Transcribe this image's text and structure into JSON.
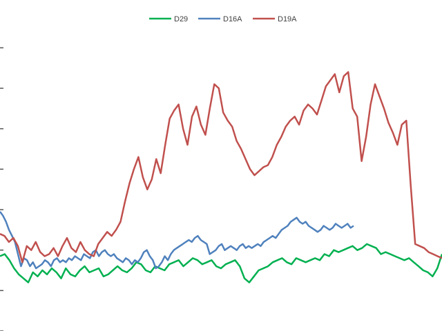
{
  "chart_data": {
    "type": "line",
    "title": "",
    "xlabel": "",
    "ylabel": "",
    "ylim": [
      0,
      7.5
    ],
    "legend": "top",
    "grid": false,
    "series": [
      {
        "name": "D29",
        "color": "#00b050",
        "values": [
          1.85,
          1.9,
          1.75,
          1.55,
          1.4,
          1.3,
          1.2,
          1.45,
          1.35,
          1.5,
          1.4,
          1.55,
          1.45,
          1.3,
          1.55,
          1.4,
          1.35,
          1.5,
          1.6,
          1.45,
          1.5,
          1.55,
          1.35,
          1.4,
          1.5,
          1.6,
          1.5,
          1.45,
          1.55,
          1.7,
          1.65,
          1.5,
          1.45,
          1.6,
          1.55,
          1.5,
          1.65,
          1.7,
          1.75,
          1.6,
          1.7,
          1.8,
          1.75,
          1.65,
          1.7,
          1.75,
          1.6,
          1.55,
          1.65,
          1.7,
          1.75,
          1.6,
          1.3,
          1.2,
          1.35,
          1.5,
          1.55,
          1.6,
          1.7,
          1.75,
          1.8,
          1.7,
          1.65,
          1.8,
          1.75,
          1.7,
          1.75,
          1.8,
          1.75,
          1.9,
          1.85,
          2.0,
          1.95,
          2.0,
          2.05,
          2.1,
          2.0,
          2.05,
          2.15,
          2.1,
          2.05,
          1.9,
          1.95,
          1.9,
          1.85,
          1.8,
          1.75,
          1.8,
          1.7,
          1.6,
          1.5,
          1.45,
          1.35,
          1.55,
          1.9
        ]
      },
      {
        "name": "D16A",
        "color": "#4f81bd",
        "values": [
          2.95,
          2.85,
          2.7,
          2.5,
          2.35,
          2.2,
          1.9,
          1.6,
          1.8,
          1.75,
          1.6,
          1.7,
          1.55,
          1.6,
          1.65,
          1.75,
          1.7,
          1.6,
          1.75,
          1.8,
          1.7,
          1.75,
          1.7,
          1.8,
          1.75,
          1.85,
          1.8,
          1.75,
          1.9,
          1.85,
          1.8,
          1.95,
          2.0,
          1.85,
          1.95,
          2.0,
          1.9,
          1.85,
          1.9,
          1.8,
          1.75,
          1.7,
          1.8,
          1.75,
          1.65,
          1.75,
          1.7,
          1.8,
          1.95,
          2.0,
          1.85,
          1.75,
          1.55,
          1.6,
          1.7,
          1.85,
          1.75,
          1.9,
          2.0,
          2.05,
          2.1,
          2.15,
          2.2,
          2.25,
          2.2,
          2.3,
          2.35,
          2.25,
          2.2,
          2.15,
          1.9,
          1.95,
          2.0,
          2.1,
          2.15,
          2.0,
          2.05,
          2.1,
          2.05,
          2.0,
          2.1,
          2.15,
          2.05,
          2.1,
          2.05,
          2.1,
          2.15,
          2.1,
          2.2,
          2.25,
          2.3,
          2.35,
          2.3,
          2.4,
          2.5,
          2.55,
          2.6,
          2.7,
          2.75,
          2.8,
          2.7,
          2.65,
          2.7,
          2.6,
          2.55,
          2.5,
          2.45,
          2.5,
          2.6,
          2.55,
          2.5,
          2.55,
          2.65,
          2.6,
          2.55,
          2.6,
          2.65,
          2.55,
          2.6
        ]
      },
      {
        "name": "D19A",
        "color": "#c0504d",
        "values": [
          2.4,
          2.35,
          2.2,
          2.3,
          2.1,
          1.7,
          2.1,
          2.0,
          2.2,
          1.95,
          1.85,
          1.9,
          2.05,
          1.85,
          2.1,
          2.3,
          2.05,
          1.95,
          2.2,
          2.0,
          1.9,
          1.85,
          2.15,
          2.3,
          2.45,
          2.35,
          2.5,
          2.7,
          3.2,
          3.65,
          4.0,
          4.3,
          3.8,
          3.5,
          3.75,
          4.25,
          3.9,
          4.6,
          5.25,
          5.45,
          5.6,
          5.0,
          4.6,
          5.3,
          5.55,
          5.1,
          4.85,
          5.5,
          6.1,
          6.0,
          5.4,
          5.2,
          5.05,
          4.7,
          4.5,
          4.25,
          4.0,
          3.85,
          3.95,
          4.05,
          4.1,
          4.3,
          4.6,
          4.8,
          5.05,
          5.2,
          5.3,
          5.1,
          5.45,
          5.6,
          5.5,
          5.35,
          5.7,
          6.05,
          6.2,
          6.35,
          5.9,
          6.3,
          6.4,
          5.5,
          5.3,
          4.2,
          4.8,
          5.6,
          6.1,
          5.8,
          5.5,
          5.15,
          4.9,
          4.6,
          5.1,
          5.2,
          3.6,
          2.15,
          2.1,
          2.05,
          1.95,
          1.9,
          1.85,
          1.8
        ]
      }
    ]
  }
}
